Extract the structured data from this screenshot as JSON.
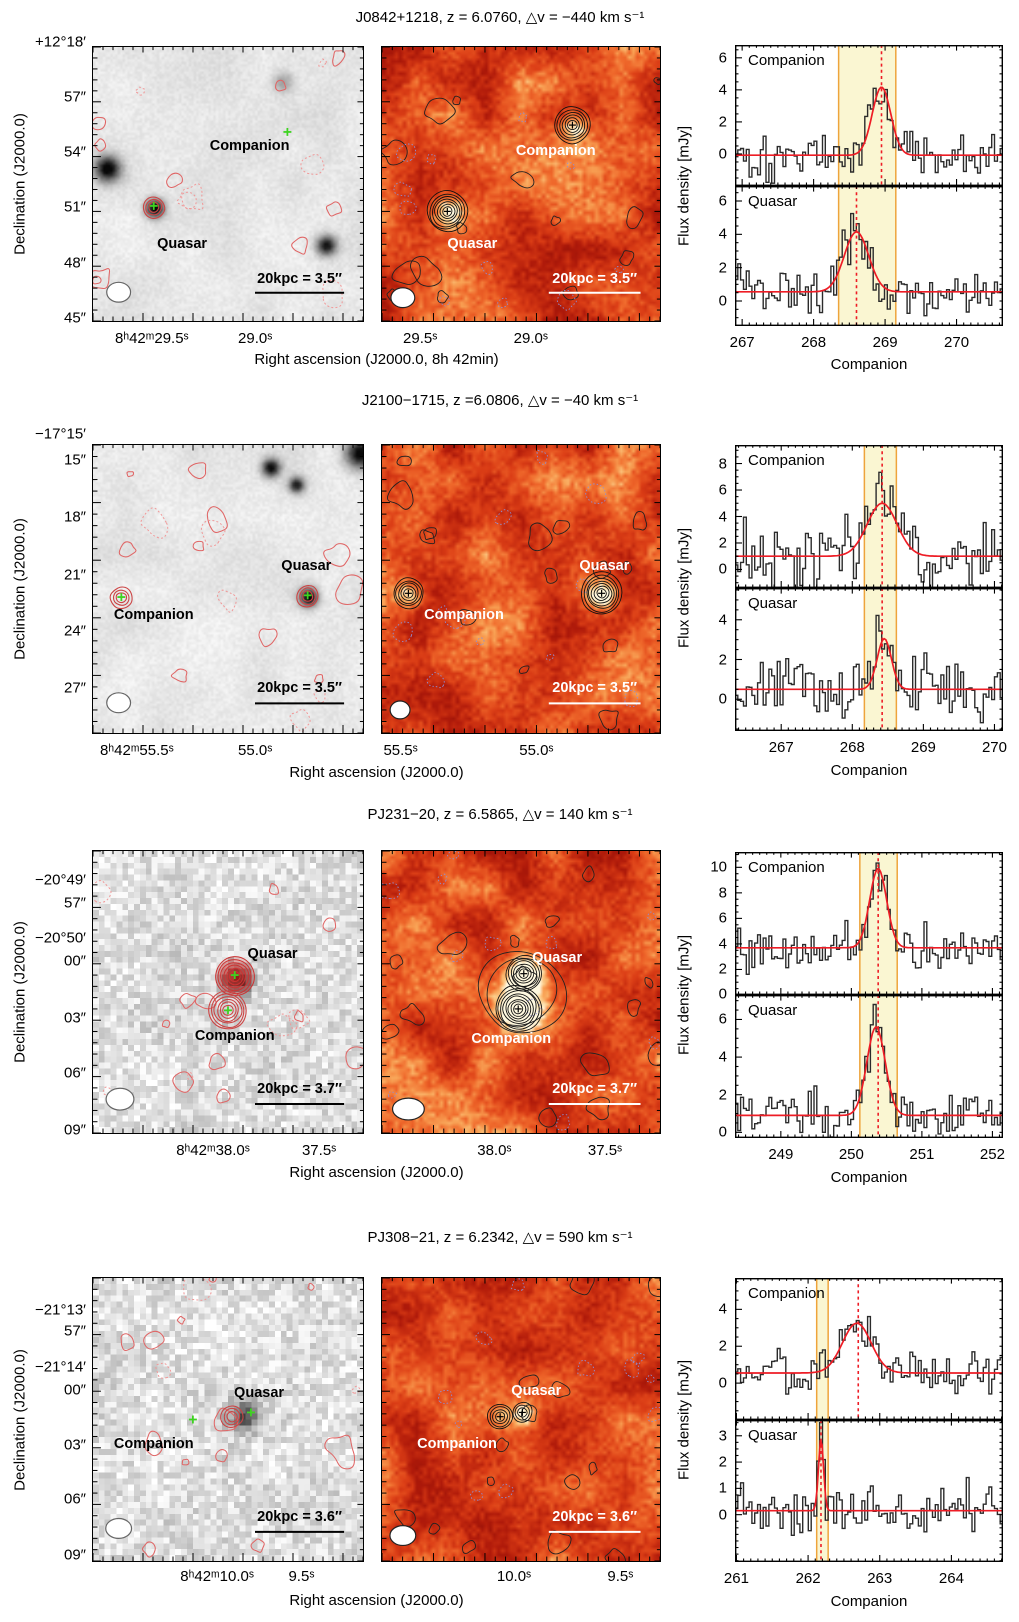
{
  "figure": {
    "dec_axis_label": "Declination (J2000.0)",
    "flux_axis_label": "Flux density [mJy]",
    "spectra_xlabel": "Companion",
    "colors": {
      "fit_red": "#ee1c25",
      "band_fill": "#faf6d2",
      "band_edge": "#eea43c",
      "hist": "#2b2b2b",
      "contour_red": "#e06666",
      "contour_red_neg": "#f09a9a",
      "contour_black": "#222222",
      "contour_blue": "#8f8fd4",
      "marker_green": "#3ed321",
      "ring_red": "#cc4444"
    }
  },
  "rows": [
    {
      "title": "J0842+1218, z = 6.0760, △v = −440 km s⁻¹",
      "ra_label": "Right ascension (J2000.0, 8h 42min)",
      "left": {
        "dec_ticks": [
          {
            "t": "+12°18′",
            "f": -0.015
          },
          {
            "t": "57″",
            "f": 0.185
          },
          {
            "t": "54″",
            "f": 0.385
          },
          {
            "t": "51″",
            "f": 0.585
          },
          {
            "t": "48″",
            "f": 0.785
          },
          {
            "t": "45″",
            "f": 0.985
          }
        ],
        "ra_ticks": [
          {
            "t": "8ʰ42ᵐ29.5ˢ",
            "f": 0.22
          },
          {
            "t": "29.0ˢ",
            "f": 0.6
          }
        ],
        "scale": "20kpc = 3.5″",
        "labels": [
          {
            "t": "Companion",
            "x": 0.58,
            "y": 0.36
          },
          {
            "t": "Quasar",
            "x": 0.33,
            "y": 0.72
          }
        ],
        "map": {
          "kind": "gray",
          "seed": 17,
          "dark": [
            [
              0.05,
              0.44,
              0.95,
              3.6
            ],
            [
              0.225,
              0.585,
              0.95,
              2.6
            ],
            [
              0.86,
              0.72,
              0.85,
              2.8
            ],
            [
              0.7,
              0.125,
              0.3,
              3.0
            ]
          ],
          "redRings": [
            [
              0.225,
              0.585,
              3
            ]
          ],
          "redFill": [],
          "plus": [
            [
              0.225,
              0.58
            ],
            [
              0.72,
              0.31
            ]
          ],
          "beam": [
            0.095,
            0.895,
            12,
            10
          ]
        }
      },
      "mid": {
        "ra_ticks": [
          {
            "t": "29.5ˢ",
            "f": 0.14
          },
          {
            "t": "29.0ˢ",
            "f": 0.535
          }
        ],
        "scale": "20kpc = 3.5″",
        "labels": [
          {
            "t": "Companion",
            "x": 0.625,
            "y": 0.38
          },
          {
            "t": "Quasar",
            "x": 0.325,
            "y": 0.72
          }
        ],
        "map": {
          "kind": "heat",
          "seed": 23,
          "peaks": [
            [
              0.235,
              0.6,
              0.62,
              2.8
            ],
            [
              0.685,
              0.285,
              0.5,
              2.6
            ]
          ],
          "rings": [
            [
              0.235,
              0.6,
              7
            ],
            [
              0.685,
              0.285,
              6
            ]
          ],
          "merge": false,
          "beam": [
            0.075,
            0.915,
            12,
            10
          ]
        }
      },
      "spec": {
        "xlim": [
          266.9,
          270.65
        ],
        "xticks": [
          267,
          268,
          269,
          270
        ],
        "band": [
          268.35,
          269.15
        ],
        "panels": [
          {
            "label": "Companion",
            "ylim": [
              -2.0,
              6.8
            ],
            "yticks": [
              0,
              2,
              4,
              6
            ],
            "line": 268.95,
            "fit": {
              "base": -0.08,
              "amp": 4.25,
              "center": 268.95,
              "sigma": 0.13
            },
            "noise": 0.75,
            "seed": 101
          },
          {
            "label": "Quasar",
            "ylim": [
              -1.5,
              6.9
            ],
            "yticks": [
              0,
              2,
              4,
              6
            ],
            "line": 268.6,
            "fit": {
              "base": 0.55,
              "amp": 3.6,
              "center": 268.6,
              "sigma": 0.17
            },
            "noise": 0.75,
            "seed": 102
          }
        ]
      }
    },
    {
      "title": "J2100−1715, z =6.0806, △v = −40 km s⁻¹",
      "ra_label": "Right ascension (J2000.0)",
      "left": {
        "dec_ticks": [
          {
            "t": "−17°15′",
            "f": -0.035
          },
          {
            "t": "15″",
            "f": 0.055
          },
          {
            "t": "18″",
            "f": 0.25
          },
          {
            "t": "21″",
            "f": 0.45
          },
          {
            "t": "24″",
            "f": 0.645
          },
          {
            "t": "27″",
            "f": 0.84
          }
        ],
        "ra_ticks": [
          {
            "t": "8ʰ42ᵐ55.5ˢ",
            "f": 0.165
          },
          {
            "t": "55.0ˢ",
            "f": 0.6
          }
        ],
        "scale": "20kpc = 3.5″",
        "labels": [
          {
            "t": "Quasar",
            "x": 0.79,
            "y": 0.42
          },
          {
            "t": "Companion",
            "x": 0.225,
            "y": 0.59
          }
        ],
        "map": {
          "kind": "gray",
          "seed": 31,
          "dark": [
            [
              0.655,
              0.075,
              0.9,
              2.6
            ],
            [
              0.75,
              0.135,
              0.8,
              2.2
            ],
            [
              0.985,
              0.025,
              0.95,
              4.2
            ],
            [
              0.795,
              0.525,
              0.95,
              2.6
            ]
          ],
          "redRings": [
            [
              0.795,
              0.525,
              3
            ],
            [
              0.105,
              0.53,
              3
            ]
          ],
          "redFill": [],
          "plus": [
            [
              0.795,
              0.522
            ],
            [
              0.105,
              0.528
            ]
          ],
          "beam": [
            0.095,
            0.895,
            12,
            10
          ]
        }
      },
      "mid": {
        "ra_ticks": [
          {
            "t": "55.5ˢ",
            "f": 0.07
          },
          {
            "t": "55.0ˢ",
            "f": 0.555
          }
        ],
        "scale": "20kpc = 3.5″",
        "labels": [
          {
            "t": "Quasar",
            "x": 0.8,
            "y": 0.42
          },
          {
            "t": "Companion",
            "x": 0.295,
            "y": 0.59
          }
        ],
        "map": {
          "kind": "heat",
          "seed": 37,
          "peaks": [
            [
              0.79,
              0.515,
              0.6,
              2.4
            ],
            [
              0.095,
              0.515,
              0.55,
              2.4
            ]
          ],
          "rings": [
            [
              0.79,
              0.515,
              7
            ],
            [
              0.095,
              0.515,
              5
            ]
          ],
          "merge": false,
          "beam": [
            0.065,
            0.92,
            10,
            9
          ]
        }
      },
      "spec": {
        "xlim": [
          266.35,
          270.12
        ],
        "xticks": [
          267,
          268,
          269,
          270
        ],
        "band": [
          268.17,
          268.62
        ],
        "panels": [
          {
            "label": "Companion",
            "ylim": [
              -1.4,
              9.4
            ],
            "yticks": [
              0,
              2,
              4,
              6,
              8
            ],
            "line": 268.42,
            "fit": {
              "base": 1.0,
              "amp": 4.0,
              "center": 268.42,
              "sigma": 0.21
            },
            "noise": 1.3,
            "seed": 201
          },
          {
            "label": "Quasar",
            "ylim": [
              -1.6,
              5.6
            ],
            "yticks": [
              0,
              2,
              4
            ],
            "line": 268.42,
            "fit": {
              "base": 0.5,
              "amp": 2.55,
              "center": 268.45,
              "sigma": 0.1
            },
            "noise": 0.8,
            "seed": 202
          }
        ]
      }
    },
    {
      "title": "PJ231−20, z = 6.5865, △v = 140 km s⁻¹",
      "ra_label": "Right ascension (J2000.0)",
      "left": {
        "dec_ticks": [
          {
            "t": "−20°49′",
            "f": 0.105
          },
          {
            "t": "57″",
            "f": 0.185
          },
          {
            "t": "−20°50′",
            "f": 0.31
          },
          {
            "t": "00″",
            "f": 0.39
          },
          {
            "t": "03″",
            "f": 0.59
          },
          {
            "t": "06″",
            "f": 0.785
          },
          {
            "t": "09″",
            "f": 0.985
          }
        ],
        "ra_ticks": [
          {
            "t": "8ʰ42ᵐ38.0ˢ",
            "f": 0.445
          },
          {
            "t": "37.5ˢ",
            "f": 0.835
          }
        ],
        "scale": "20kpc = 3.7″",
        "labels": [
          {
            "t": "Quasar",
            "x": 0.665,
            "y": 0.365
          },
          {
            "t": "Companion",
            "x": 0.525,
            "y": 0.655
          }
        ],
        "map": {
          "kind": "pixel",
          "seed": 41,
          "dark": [
            [
              0.525,
              0.445,
              0.8,
              1.7
            ]
          ],
          "redRings": [
            [
              0.5,
              0.565,
              6
            ]
          ],
          "redFill": [
            [
              0.525,
              0.445,
              6
            ]
          ],
          "plus": [
            [
              0.525,
              0.44
            ],
            [
              0.5,
              0.565
            ]
          ],
          "beam": [
            0.1,
            0.88,
            14,
            11
          ]
        }
      },
      "mid": {
        "ra_ticks": [
          {
            "t": "38.0ˢ",
            "f": 0.405
          },
          {
            "t": "37.5ˢ",
            "f": 0.8
          }
        ],
        "scale": "20kpc = 3.7″",
        "labels": [
          {
            "t": "Quasar",
            "x": 0.63,
            "y": 0.38
          },
          {
            "t": "Companion",
            "x": 0.465,
            "y": 0.665
          }
        ],
        "map": {
          "kind": "heat",
          "seed": 43,
          "peaks": [
            [
              0.51,
              0.435,
              0.75,
              3.2
            ],
            [
              0.49,
              0.56,
              0.8,
              3.6
            ]
          ],
          "rings": [
            [
              0.51,
              0.435,
              6
            ],
            [
              0.49,
              0.56,
              8
            ]
          ],
          "merge": true,
          "beam": [
            0.095,
            0.915,
            16,
            11
          ]
        }
      },
      "spec": {
        "xlim": [
          248.35,
          252.15
        ],
        "xticks": [
          249,
          250,
          251,
          252
        ],
        "band": [
          250.12,
          250.65
        ],
        "panels": [
          {
            "label": "Companion",
            "ylim": [
              0,
              11.2
            ],
            "yticks": [
              0,
              2,
              4,
              6,
              8,
              10
            ],
            "line": 250.38,
            "fit": {
              "base": 3.7,
              "amp": 6.2,
              "center": 250.38,
              "sigma": 0.12
            },
            "noise": 0.8,
            "seed": 301
          },
          {
            "label": "Quasar",
            "ylim": [
              -0.3,
              7.3
            ],
            "yticks": [
              0,
              2,
              4,
              6
            ],
            "line": 250.38,
            "fit": {
              "base": 0.9,
              "amp": 4.7,
              "center": 250.35,
              "sigma": 0.13
            },
            "noise": 0.62,
            "seed": 302
          }
        ]
      }
    },
    {
      "title": "PJ308−21, z = 6.2342, △v = 590 km s⁻¹",
      "ra_label": "Right ascension (J2000.0)",
      "left": {
        "dec_ticks": [
          {
            "t": "−21°13′",
            "f": 0.115
          },
          {
            "t": "57″",
            "f": 0.19
          },
          {
            "t": "−21°14′",
            "f": 0.315
          },
          {
            "t": "00″",
            "f": 0.395
          },
          {
            "t": "03″",
            "f": 0.59
          },
          {
            "t": "06″",
            "f": 0.78
          },
          {
            "t": "09″",
            "f": 0.975
          }
        ],
        "ra_ticks": [
          {
            "t": "8ʰ42ᵐ10.0ˢ",
            "f": 0.46
          },
          {
            "t": "9.5ˢ",
            "f": 0.77
          }
        ],
        "scale": "20kpc = 3.6″",
        "labels": [
          {
            "t": "Quasar",
            "x": 0.615,
            "y": 0.405
          },
          {
            "t": "Companion",
            "x": 0.225,
            "y": 0.585
          }
        ],
        "map": {
          "kind": "pixel",
          "seed": 53,
          "dark": [
            [
              0.555,
              0.475,
              0.55,
              1.9
            ]
          ],
          "redRings": [
            [
              0.515,
              0.49,
              3
            ]
          ],
          "redFill": [],
          "plus": [
            [
              0.585,
              0.475
            ],
            [
              0.37,
              0.5
            ]
          ],
          "beam": [
            0.095,
            0.885,
            13,
            10
          ]
        }
      },
      "mid": {
        "ra_ticks": [
          {
            "t": "10.0ˢ",
            "f": 0.475
          },
          {
            "t": "9.5ˢ",
            "f": 0.855
          }
        ],
        "scale": "20kpc = 3.6″",
        "labels": [
          {
            "t": "Quasar",
            "x": 0.555,
            "y": 0.4
          },
          {
            "t": "Companion",
            "x": 0.27,
            "y": 0.585
          }
        ],
        "map": {
          "kind": "heat",
          "seed": 59,
          "peaks": [
            [
              0.505,
              0.475,
              0.55,
              2.0
            ],
            [
              0.425,
              0.49,
              0.25,
              1.8
            ]
          ],
          "rings": [
            [
              0.425,
              0.49,
              4
            ],
            [
              0.505,
              0.475,
              3
            ]
          ],
          "merge": false,
          "beam": [
            0.075,
            0.91,
            13,
            10
          ]
        }
      },
      "spec": {
        "xlim": [
          260.98,
          264.72
        ],
        "xticks": [
          261,
          262,
          263,
          264
        ],
        "band": [
          262.12,
          262.28
        ],
        "panels": [
          {
            "label": "Companion",
            "ylim": [
              -2.0,
              5.7
            ],
            "yticks": [
              0,
              2,
              4
            ],
            "line": 262.7,
            "fit": {
              "base": 0.55,
              "amp": 2.7,
              "center": 262.68,
              "sigma": 0.2
            },
            "noise": 0.55,
            "seed": 401
          },
          {
            "label": "Quasar",
            "ylim": [
              -1.8,
              3.6
            ],
            "yticks": [
              0,
              1,
              2,
              3
            ],
            "line": 262.18,
            "fit": {
              "base": 0.15,
              "amp": 2.75,
              "center": 262.18,
              "sigma": 0.035
            },
            "noise": 0.5,
            "seed": 402
          }
        ]
      }
    }
  ]
}
